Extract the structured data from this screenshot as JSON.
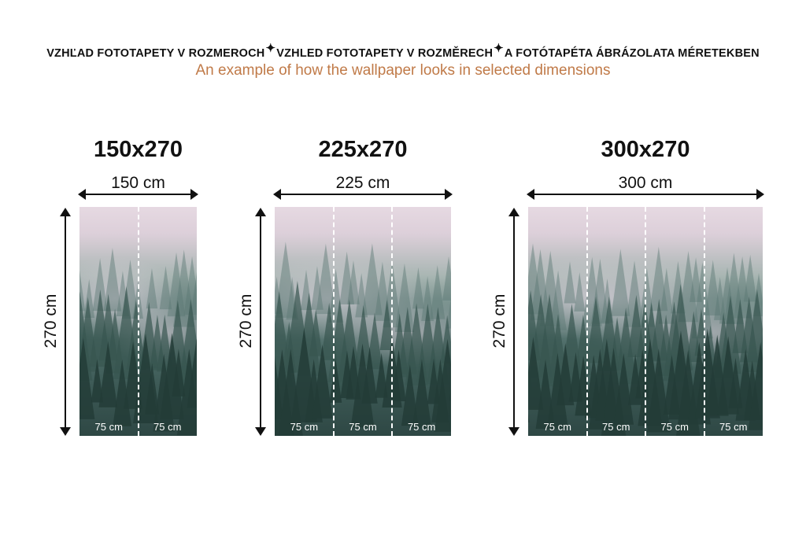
{
  "header": {
    "titles": [
      "VZHĽAD FOTOTAPETY V ROZMEROCH",
      "VZHLED FOTOTAPETY V ROZMĚRECH",
      "A FOTÓTAPÉTA ÁBRÁZOLATA MÉRETEKBEN"
    ],
    "separator_icon": "sparkle-icon",
    "subtitle": "An example of how the wallpaper looks in selected dimensions",
    "subtitle_color": "#c07a48"
  },
  "variants": [
    {
      "title": "150x270",
      "width_label": "150 cm",
      "height_label": "270 cm",
      "strips": [
        "75 cm",
        "75 cm"
      ]
    },
    {
      "title": "225x270",
      "width_label": "225 cm",
      "height_label": "270 cm",
      "strips": [
        "75 cm",
        "75 cm",
        "75 cm"
      ]
    },
    {
      "title": "300x270",
      "width_label": "300 cm",
      "height_label": "270 cm",
      "strips": [
        "75 cm",
        "75 cm",
        "75 cm",
        "75 cm"
      ]
    }
  ],
  "image_subject": "misty pine forest"
}
